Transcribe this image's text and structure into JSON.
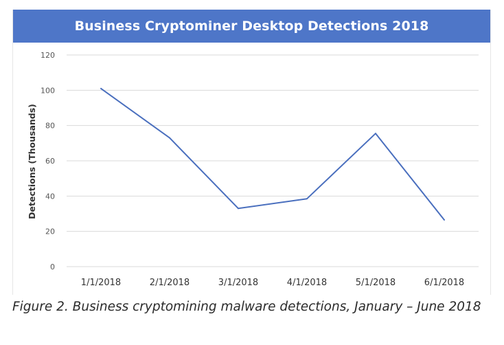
{
  "chart_data": {
    "type": "line",
    "title": "Business Cryptominer Desktop Detections 2018",
    "categories": [
      "1/1/2018",
      "2/1/2018",
      "3/1/2018",
      "4/1/2018",
      "5/1/2018",
      "6/1/2018"
    ],
    "series": [
      {
        "name": "Detections (Thousands)",
        "values": [
          101,
          73,
          33,
          38.5,
          75.5,
          26.5
        ],
        "color": "#4a6fbe"
      }
    ],
    "xlabel": "",
    "ylabel": "Detections (Thousands)",
    "ylim": [
      0,
      120
    ],
    "yticks": [
      "0",
      "20",
      "40",
      "60",
      "80",
      "100",
      "120"
    ],
    "grid": true,
    "legend": "none"
  },
  "caption": "Figure 2. Business cryptomining malware detections, January – June 2018",
  "colors": {
    "title_bar": "#4e76c8",
    "gridline": "#d9d9d9",
    "line": "#4a6fbe"
  }
}
